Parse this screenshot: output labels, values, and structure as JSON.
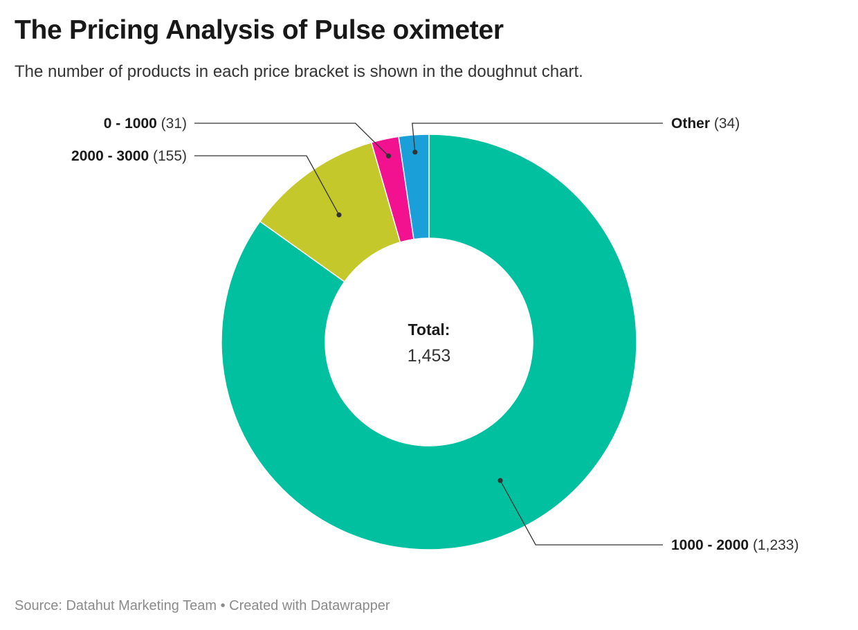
{
  "header": {
    "title": "The Pricing Analysis of Pulse oximeter",
    "subtitle": "The number of products in each price bracket is shown in the doughnut chart."
  },
  "footer": {
    "source": "Source: Datahut Marketing Team",
    "separator": "•",
    "credit": "Created with Datawrapper"
  },
  "chart_data": {
    "type": "pie",
    "variant": "doughnut",
    "center_label": {
      "title": "Total:",
      "value": "1,453"
    },
    "slices": [
      {
        "name": "1000 - 2000",
        "value": 1233,
        "display": "(1,233)",
        "color": "#00c0a0"
      },
      {
        "name": "2000 - 3000",
        "value": 155,
        "display": "(155)",
        "color": "#c4c82a"
      },
      {
        "name": "0 - 1000",
        "value": 31,
        "display": "(31)",
        "color": "#f2118e"
      },
      {
        "name": "Other",
        "value": 34,
        "display": "(34)",
        "color": "#1a9fd8"
      }
    ],
    "title": "The Pricing Analysis of Pulse oximeter",
    "legend": "none"
  }
}
